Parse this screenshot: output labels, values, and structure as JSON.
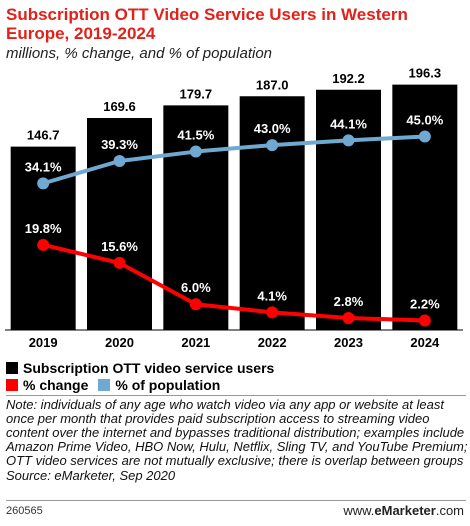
{
  "title": "Subscription OTT Video Service Users in Western Europe, 2019-2024",
  "subtitle": "millions, % change, and % of population",
  "chart_data": {
    "type": "bar",
    "categories": [
      "2019",
      "2020",
      "2021",
      "2022",
      "2023",
      "2024"
    ],
    "series": [
      {
        "name": "Subscription OTT video service users",
        "values": [
          146.7,
          169.6,
          179.7,
          187.0,
          192.2,
          196.3
        ],
        "color": "#000000",
        "labels": [
          "146.7",
          "169.6",
          "179.7",
          "187.0",
          "192.2",
          "196.3"
        ]
      },
      {
        "name": "% change",
        "values": [
          19.8,
          15.6,
          6.0,
          4.1,
          2.8,
          2.2
        ],
        "color": "#ff0000",
        "labels": [
          "19.8%",
          "15.6%",
          "6.0%",
          "4.1%",
          "2.8%",
          "2.2%"
        ]
      },
      {
        "name": "% of population",
        "values": [
          34.1,
          39.3,
          41.5,
          43.0,
          44.1,
          45.0
        ],
        "color": "#6fa8d0",
        "labels": [
          "34.1%",
          "39.3%",
          "41.5%",
          "43.0%",
          "44.1%",
          "45.0%"
        ]
      }
    ],
    "bar_ylim": [
      0,
      200
    ],
    "line_ylim": [
      0,
      50
    ],
    "legend_position": "bottom"
  },
  "note": "Note: individuals of any age who watch video via any app or website at least once per month that provides paid subscription access to streaming video content over the internet and bypasses traditional distribution; examples include Amazon Prime Video, HBO Now, Hulu, Netflix, Sling TV, and YouTube Premium; OTT video services are not mutually exclusive; there is overlap between groups",
  "source": "Source: eMarketer, Sep 2020",
  "footer_id": "260565",
  "brand": {
    "prefix": "www.",
    "name": "eMarketer",
    "suffix": ".com"
  }
}
